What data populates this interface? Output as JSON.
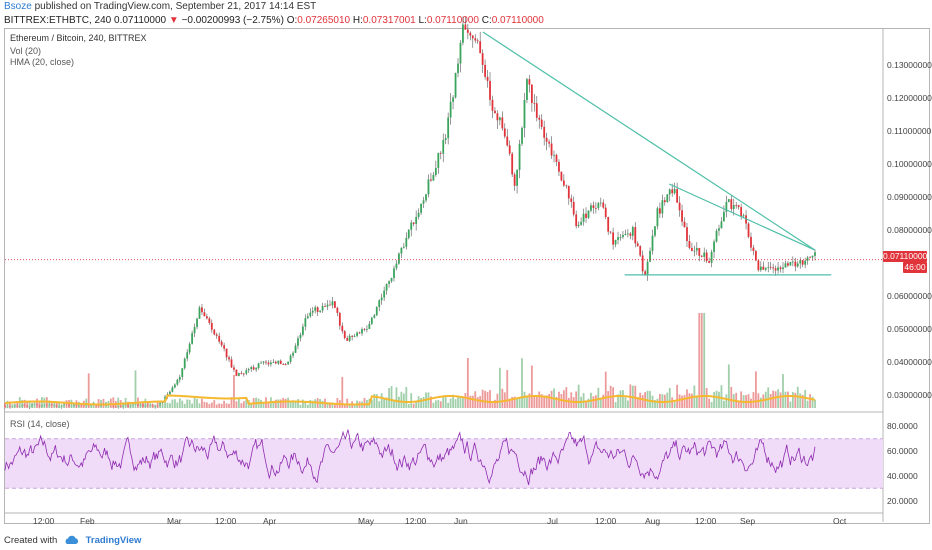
{
  "header": {
    "author": "Bsoze",
    "published_text": "published on TradingView.com, September 21, 2017 14:14 EST"
  },
  "quote": {
    "symbol": "BITTREX:ETHBTC, 240",
    "last": "0.07110000",
    "change": "−0.00200993 (−2.75%)",
    "open_label": "O:",
    "open": "0.07265010",
    "high_label": "H:",
    "high": "0.07317001",
    "low_label": "L:",
    "low": "0.07110000",
    "close_label": "C:",
    "close": "0.07110000"
  },
  "legend": {
    "title": "Ethereum / Bitcoin, 240, BITTREX",
    "vol": "Vol (20)",
    "hma": "HMA (20, close)",
    "rsi": "RSI (14, close)"
  },
  "price_axis": {
    "ticks": [
      "0.13000000",
      "0.12000000",
      "0.11000000",
      "0.10000000",
      "0.09000000",
      "0.08000000",
      "0.06000000",
      "0.05000000",
      "0.04000000",
      "0.03000000"
    ],
    "last_price_tag": "0.07110000",
    "countdown_tag": "46:00"
  },
  "rsi_axis": {
    "ticks": [
      "80.0000",
      "60.0000",
      "40.0000",
      "20.0000"
    ]
  },
  "time_axis": {
    "ticks": [
      "12:00",
      "Feb",
      "Mar",
      "12:00",
      "Apr",
      "May",
      "12:00",
      "Jun",
      "Jul",
      "12:00",
      "Aug",
      "12:00",
      "Sep",
      "Oct"
    ]
  },
  "footer": {
    "created_with": "Created with",
    "brand": "TradingView"
  },
  "colors": {
    "up": "#3aa35c",
    "down": "#e0333a",
    "trendline": "#4fbfa8",
    "hma": "#f5b82e",
    "rsi_line": "#8e2bb0",
    "rsi_band": "#f0dcf8"
  },
  "chart_data": {
    "type": "candlestick",
    "symbol": "ETHBTC",
    "ylim": [
      0.025,
      0.14
    ],
    "price_path_keypoints": [
      [
        0.0,
        0.027
      ],
      [
        0.19,
        0.027
      ],
      [
        0.215,
        0.035
      ],
      [
        0.24,
        0.056
      ],
      [
        0.262,
        0.048
      ],
      [
        0.285,
        0.036
      ],
      [
        0.32,
        0.04
      ],
      [
        0.35,
        0.04
      ],
      [
        0.375,
        0.055
      ],
      [
        0.405,
        0.058
      ],
      [
        0.42,
        0.047
      ],
      [
        0.445,
        0.05
      ],
      [
        0.47,
        0.062
      ],
      [
        0.495,
        0.077
      ],
      [
        0.52,
        0.092
      ],
      [
        0.545,
        0.11
      ],
      [
        0.565,
        0.14
      ],
      [
        0.585,
        0.138
      ],
      [
        0.6,
        0.118
      ],
      [
        0.615,
        0.112
      ],
      [
        0.63,
        0.094
      ],
      [
        0.645,
        0.125
      ],
      [
        0.665,
        0.108
      ],
      [
        0.69,
        0.095
      ],
      [
        0.705,
        0.082
      ],
      [
        0.72,
        0.085
      ],
      [
        0.735,
        0.09
      ],
      [
        0.75,
        0.076
      ],
      [
        0.775,
        0.08
      ],
      [
        0.79,
        0.066
      ],
      [
        0.805,
        0.085
      ],
      [
        0.825,
        0.093
      ],
      [
        0.845,
        0.075
      ],
      [
        0.87,
        0.071
      ],
      [
        0.89,
        0.089
      ],
      [
        0.91,
        0.085
      ],
      [
        0.93,
        0.068
      ],
      [
        0.95,
        0.068
      ],
      [
        0.97,
        0.07
      ],
      [
        0.99,
        0.071
      ],
      [
        1.0,
        0.0725
      ]
    ],
    "trendlines": [
      {
        "from": [
          0.59,
          0.14
        ],
        "to": [
          1.0,
          0.074
        ]
      },
      {
        "from": [
          0.82,
          0.094
        ],
        "to": [
          1.0,
          0.074
        ]
      },
      {
        "from": [
          0.765,
          0.0665
        ],
        "to": [
          1.02,
          0.0665
        ]
      }
    ],
    "rsi_levels": {
      "upper": 70,
      "lower": 30,
      "ylim": [
        10,
        90
      ]
    }
  }
}
